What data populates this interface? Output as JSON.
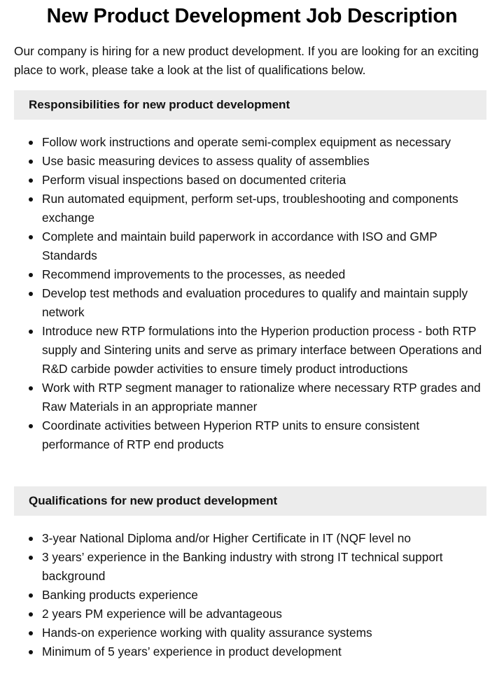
{
  "title": "New Product Development Job Description",
  "intro": "Our company is hiring for a new product development. If you are looking for an exciting place to work, please take a look at the list of qualifications below.",
  "responsibilities": {
    "heading": "Responsibilities for new product development",
    "items": [
      "Follow work instructions and operate semi-complex equipment as necessary",
      "Use basic measuring devices to assess quality of assemblies",
      "Perform visual inspections based on documented criteria",
      "Run automated equipment, perform set-ups, troubleshooting and components exchange",
      "Complete and maintain build paperwork in accordance with ISO and GMP Standards",
      "Recommend improvements to the processes, as needed",
      "Develop test methods and evaluation procedures to qualify and maintain supply network",
      "Introduce new RTP formulations into the Hyperion production process - both RTP supply and Sintering units and serve as primary interface between Operations and R&D carbide powder activities to ensure timely product introductions",
      "Work with RTP segment manager to rationalize where necessary RTP grades and Raw Materials in an appropriate manner",
      "Coordinate activities between Hyperion RTP units to ensure consistent performance of RTP end products"
    ]
  },
  "qualifications": {
    "heading": "Qualifications for new product development",
    "items": [
      "3-year National Diploma and/or Higher Certificate in IT (NQF level no",
      "3 years’ experience in the Banking industry with strong IT technical support background",
      "Banking products experience",
      "2 years PM experience will be advantageous",
      "Hands-on experience working with quality assurance systems",
      "Minimum of 5 years’ experience in product development"
    ]
  }
}
